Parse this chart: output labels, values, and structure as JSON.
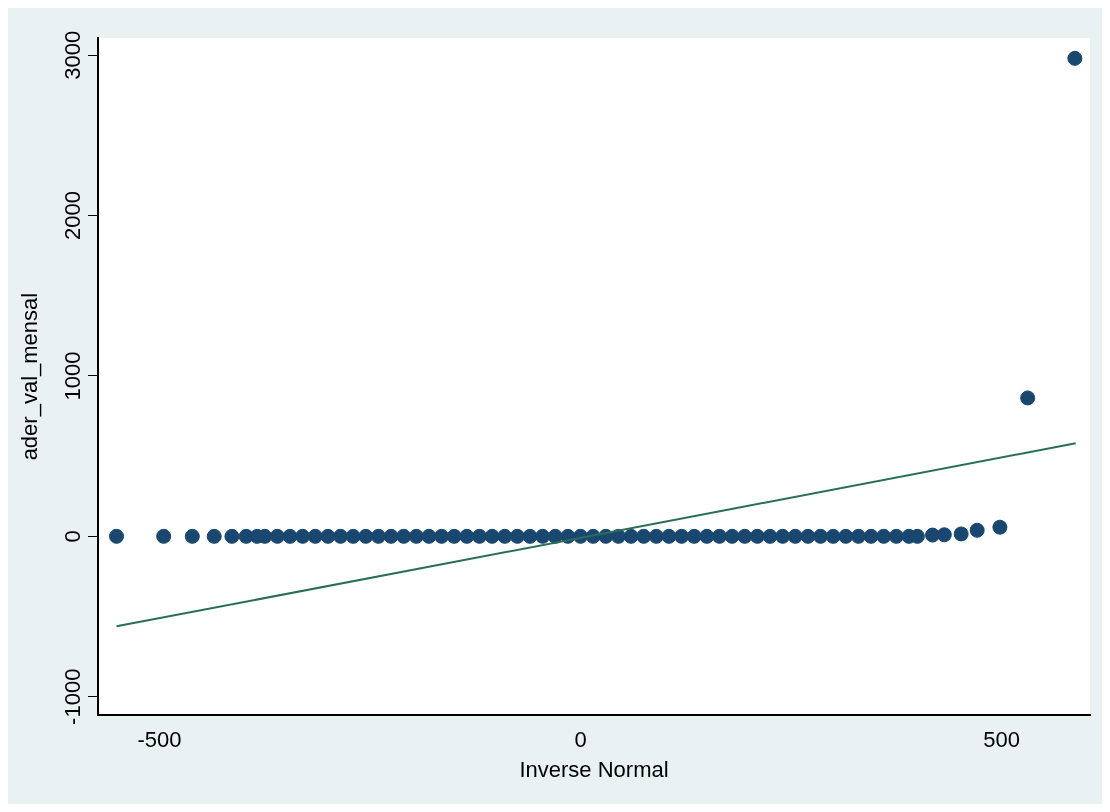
{
  "chart_data": {
    "type": "scatter",
    "xlabel": "Inverse Normal",
    "ylabel": "ader_val_mensal",
    "xlim": [
      -573,
      605
    ],
    "ylim": [
      -1115,
      3107
    ],
    "xticks": [
      -500,
      0,
      500
    ],
    "yticks": [
      -1000,
      0,
      1000,
      2000,
      3000
    ],
    "grid": false,
    "legend": false,
    "marker": "circle",
    "series": [
      {
        "type": "scatter",
        "color": "#1a476f",
        "x": [
          -551,
          -495,
          -461,
          -435,
          -414,
          -397,
          -384,
          -375,
          -360,
          -345,
          -330,
          -315,
          -300,
          -285,
          -270,
          -255,
          -240,
          -225,
          -210,
          -195,
          -180,
          -165,
          -150,
          -135,
          -120,
          -105,
          -90,
          -75,
          -60,
          -45,
          -30,
          -15,
          0,
          15,
          30,
          45,
          60,
          75,
          90,
          105,
          120,
          135,
          150,
          165,
          180,
          195,
          210,
          225,
          240,
          255,
          270,
          285,
          300,
          315,
          330,
          345,
          360,
          375,
          390,
          400,
          418,
          432,
          452,
          471,
          498,
          531,
          587
        ],
        "values": [
          0,
          0,
          0,
          0,
          0,
          0,
          0,
          0,
          0,
          0,
          0,
          0,
          0,
          0,
          0,
          0,
          0,
          0,
          0,
          0,
          0,
          0,
          0,
          0,
          0,
          0,
          0,
          0,
          0,
          0,
          0,
          0,
          0,
          0,
          0,
          0,
          0,
          0,
          0,
          0,
          0,
          0,
          0,
          0,
          0,
          0,
          0,
          0,
          0,
          0,
          0,
          0,
          0,
          0,
          0,
          0,
          0,
          0,
          0,
          0,
          8,
          10,
          15,
          38,
          57,
          863,
          2980
        ]
      },
      {
        "type": "line",
        "color": "#2a6e55",
        "x": [
          -551,
          588
        ],
        "values": [
          -561,
          580
        ],
        "marker": "none",
        "line_style": "solid"
      }
    ]
  }
}
